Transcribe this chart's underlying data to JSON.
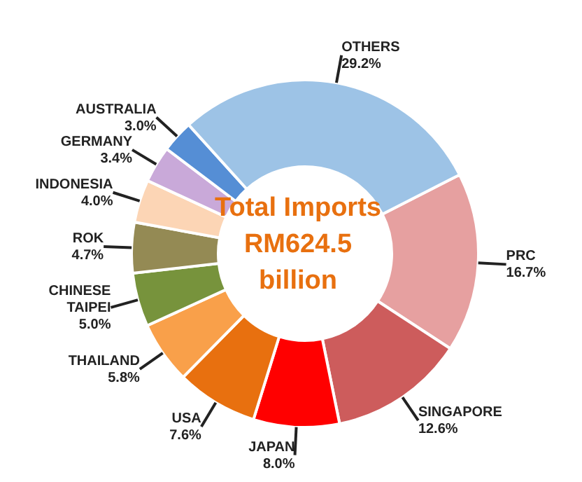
{
  "chart_data": {
    "type": "donut",
    "title": "Total Imports RM624.5 billion",
    "categories": [
      "PRC",
      "SINGAPORE",
      "JAPAN",
      "USA",
      "THAILAND",
      "CHINESE TAIPEI",
      "ROK",
      "INDONESIA",
      "GERMANY",
      "AUSTRALIA",
      "OTHERS"
    ],
    "values": [
      16.7,
      12.6,
      8.0,
      7.6,
      5.8,
      5.0,
      4.7,
      4.0,
      3.4,
      3.0,
      29.2
    ],
    "value_labels": [
      "16.7%",
      "12.6%",
      "8.0%",
      "7.6%",
      "5.8%",
      "5.0%",
      "4.7%",
      "4.0%",
      "3.4%",
      "3.0%",
      "29.2%"
    ],
    "colors": [
      "#e6a0a0",
      "#cd5c5c",
      "#ff0000",
      "#e8700f",
      "#f9a04a",
      "#77933c",
      "#948a54",
      "#fcd5b5",
      "#c9a9d9",
      "#558ed5",
      "#9dc3e6"
    ],
    "legend": false
  }
}
